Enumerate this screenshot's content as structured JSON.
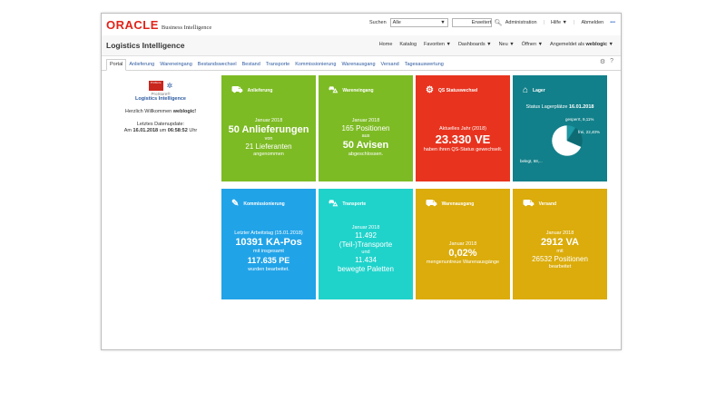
{
  "header": {
    "logo": "ORACLE",
    "logo_sub": "Business Intelligence",
    "search_label": "Suchen",
    "search_scope": "Alle",
    "links": [
      "Erweitert",
      "Administration",
      "Hilfe ▼",
      "Abmelden"
    ]
  },
  "titlebar": {
    "title": "Logistics Intelligence",
    "nav": [
      "Home",
      "Katalog",
      "Favoriten ▼",
      "Dashboards ▼",
      "Neu ▼",
      "Öffnen ▼"
    ],
    "signed_in_label": "Angemeldet als",
    "user": "weblogic"
  },
  "tabs": [
    "Portal",
    "Anlieferung",
    "Wareneingang",
    "Bestandswechsel",
    "Bestand",
    "Transporte",
    "Kommissionierung",
    "Warenausgang",
    "Versand",
    "Tagesauswertung"
  ],
  "sidebar": {
    "logo_text": "ProStore",
    "product": "ProStore®",
    "app": "Logistics Intelligence",
    "welcome": "Herzlich Willkommen",
    "user": "weblogic!",
    "update_label": "Letztes Datenupdate:",
    "update_prefix": "Am",
    "update_date": "16.01.2018",
    "update_mid": "um",
    "update_time": "06:58:52",
    "update_suffix": "Uhr"
  },
  "tiles": [
    {
      "title": "Anlieferung",
      "icon": "delivery-truck-icon",
      "color": "#7dbb24",
      "lines": [
        "Januar 2018",
        "50 Anlieferungen",
        "von",
        "21 Lieferanten",
        "angenommen"
      ]
    },
    {
      "title": "Wareneingang",
      "icon": "forklift-icon",
      "color": "#7dbb24",
      "lines": [
        "Januar 2018",
        "165 Positionen",
        "aus",
        "50 Avisen",
        "abgeschlossen."
      ]
    },
    {
      "title": "QS Statuswechsel",
      "icon": "quality-check-icon",
      "color": "#e8341f",
      "lines": [
        "Aktuelles Jahr (2018)",
        "23.330 VE",
        "haben ihren QS-Status gewechselt."
      ]
    },
    {
      "title": "Lager",
      "icon": "warehouse-icon",
      "color": "#12808a",
      "lines": [
        "Status Lagerplätze",
        "16.01.2018"
      ],
      "pie_labels": [
        "gesperrt, 9,11%",
        "frei, 22,40%",
        "belegt, 68,..."
      ]
    },
    {
      "title": "Kommissionierung",
      "icon": "picking-list-icon",
      "color": "#21a3e8",
      "lines": [
        "Letzter Arbeitstag (15.01.2018)",
        "10391 KA-Pos",
        "mit insgesamt",
        "117.635 PE",
        "wurden bearbeitet."
      ]
    },
    {
      "title": "Transporte",
      "icon": "pallet-transport-icon",
      "color": "#1fd3cb",
      "lines": [
        "Januar 2018",
        "11.492",
        "(Teil-)Transporte",
        "und",
        "11.434",
        "bewegte Paletten"
      ]
    },
    {
      "title": "Warenausgang",
      "icon": "outbound-truck-icon",
      "color": "#dbac0b",
      "lines": [
        "Januar 2018",
        "0,02%",
        "mengenuntreue Warenausgänge"
      ]
    },
    {
      "title": "Versand",
      "icon": "shipping-truck-icon",
      "color": "#dbac0b",
      "lines": [
        "Januar 2018",
        "2912 VA",
        "mit",
        "26532 Positionen",
        "bearbeitet"
      ]
    }
  ],
  "lager_pie": {
    "segments": [
      {
        "label": "belegt",
        "value": 68.49,
        "color": "#ffffff"
      },
      {
        "label": "gesperrt",
        "value": 9.11,
        "color": "#1d9aa5"
      },
      {
        "label": "frei",
        "value": 22.4,
        "color": "#0e6b74"
      }
    ]
  }
}
